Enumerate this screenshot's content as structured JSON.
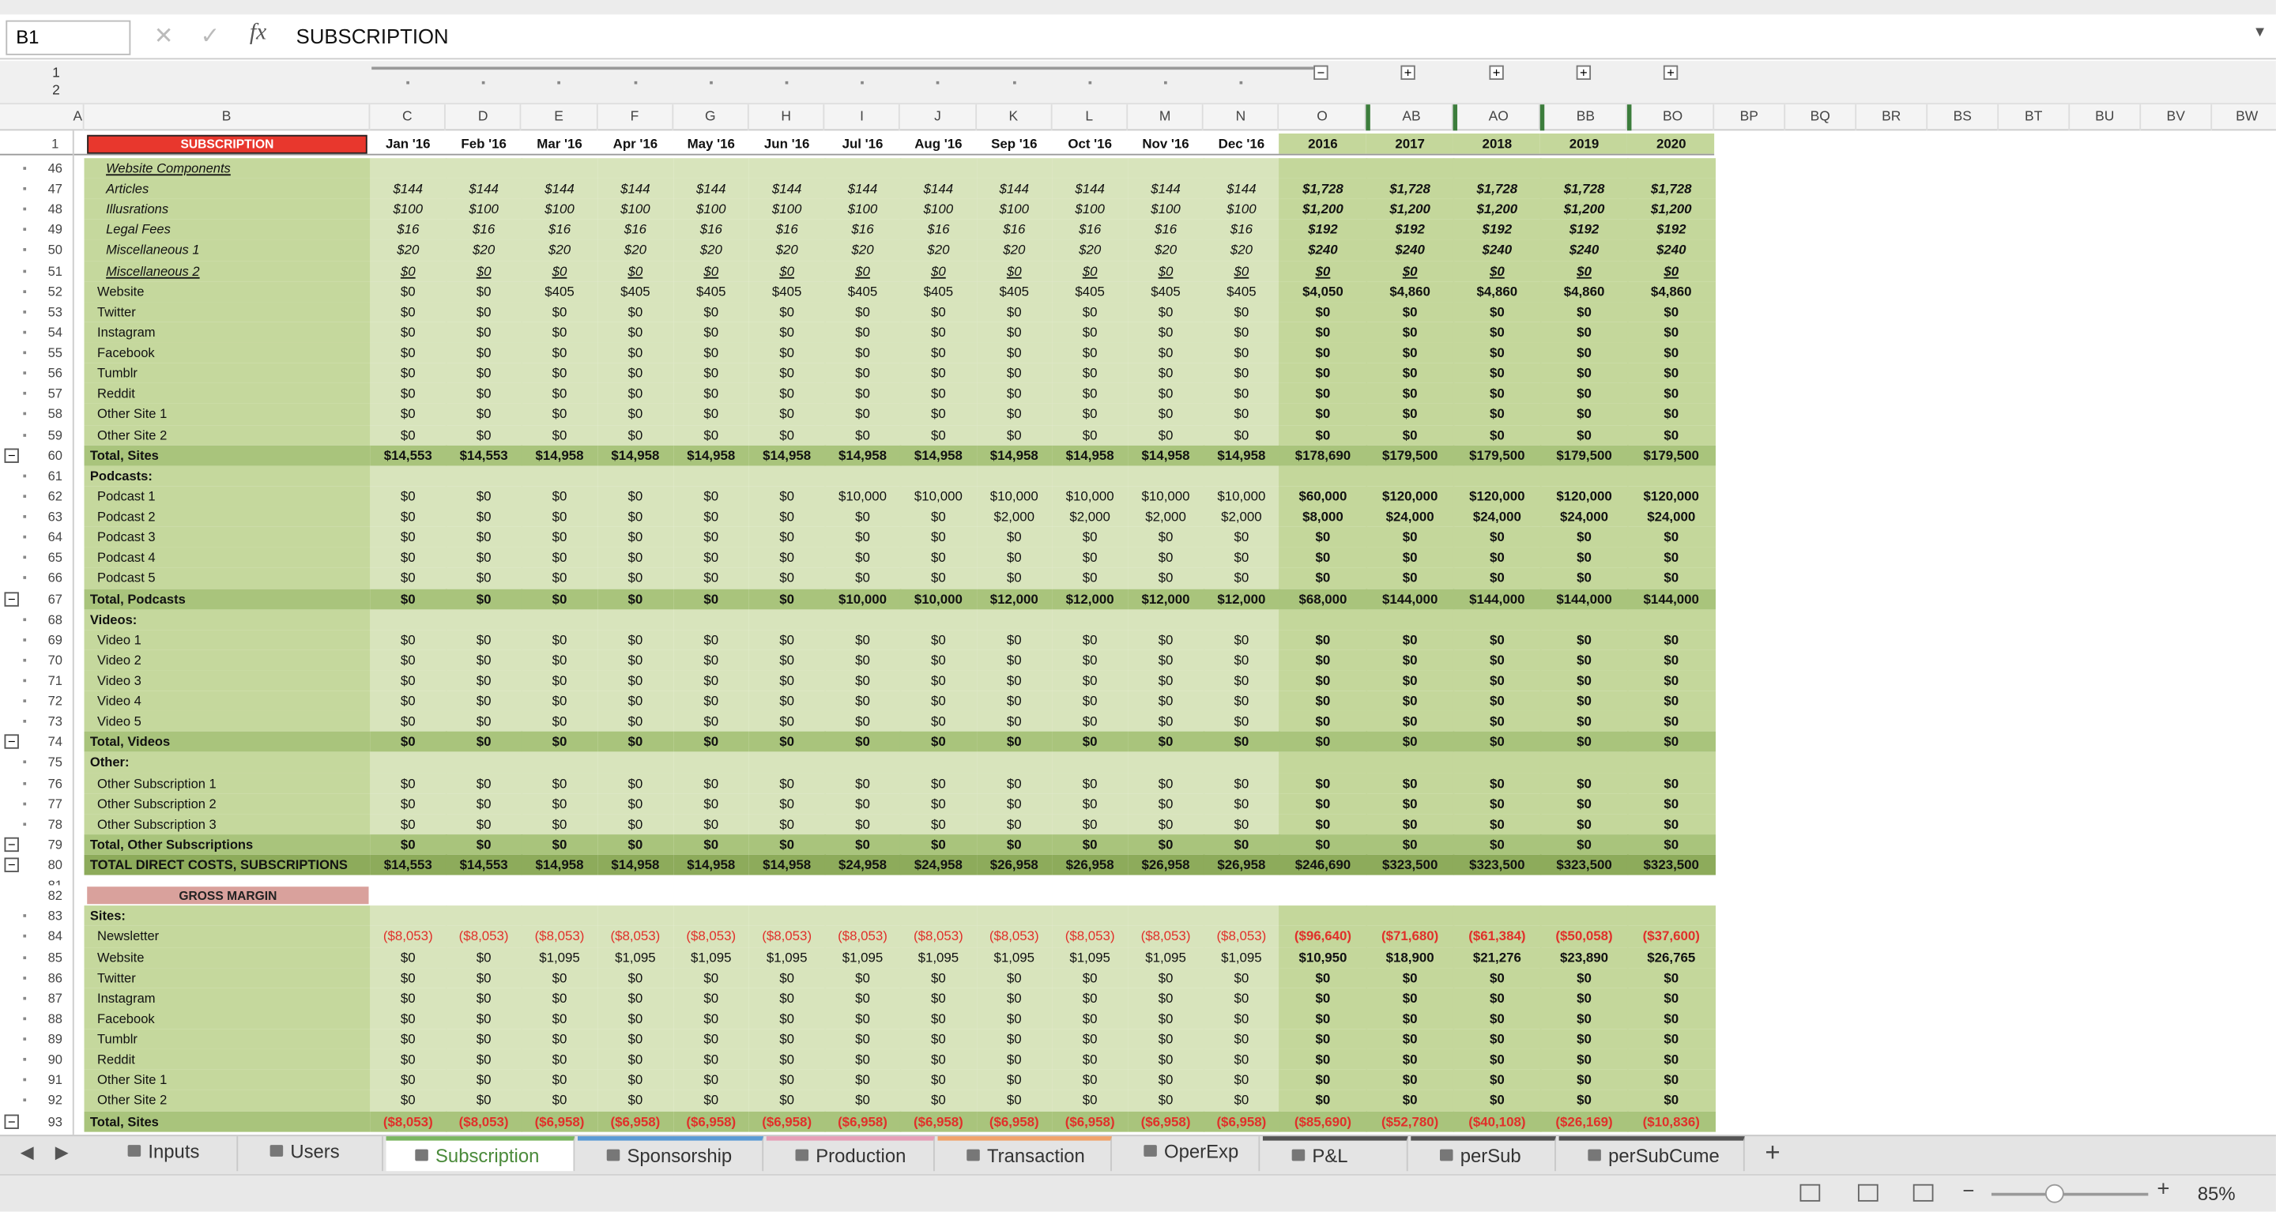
{
  "formula_bar": {
    "cell_ref": "B1",
    "content": "SUBSCRIPTION"
  },
  "outline_levels": [
    "1",
    "2"
  ],
  "column_headers": [
    "A",
    "B",
    "C",
    "D",
    "E",
    "F",
    "G",
    "H",
    "I",
    "J",
    "K",
    "L",
    "M",
    "N",
    "O",
    "AB",
    "AO",
    "BB",
    "BO",
    "BP",
    "BQ",
    "BR",
    "BS",
    "BT",
    "BU",
    "BV",
    "BW"
  ],
  "header_row": {
    "row": "1",
    "label": "SUBSCRIPTION",
    "columns": [
      "Jan '16",
      "Feb '16",
      "Mar '16",
      "Apr '16",
      "May '16",
      "Jun '16",
      "Jul '16",
      "Aug '16",
      "Sep '16",
      "Oct '16",
      "Nov '16",
      "Dec '16",
      "2016",
      "2017",
      "2018",
      "2019",
      "2020"
    ]
  },
  "rows": [
    {
      "row": "46",
      "label": "Website Components",
      "style": "sub-header"
    },
    {
      "row": "47",
      "label": "Articles",
      "style": "component",
      "values": [
        "$144",
        "$144",
        "$144",
        "$144",
        "$144",
        "$144",
        "$144",
        "$144",
        "$144",
        "$144",
        "$144",
        "$144",
        "$1,728",
        "$1,728",
        "$1,728",
        "$1,728",
        "$1,728"
      ]
    },
    {
      "row": "48",
      "label": "Illusrations",
      "style": "component",
      "values": [
        "$100",
        "$100",
        "$100",
        "$100",
        "$100",
        "$100",
        "$100",
        "$100",
        "$100",
        "$100",
        "$100",
        "$100",
        "$1,200",
        "$1,200",
        "$1,200",
        "$1,200",
        "$1,200"
      ]
    },
    {
      "row": "49",
      "label": "Legal Fees",
      "style": "component",
      "values": [
        "$16",
        "$16",
        "$16",
        "$16",
        "$16",
        "$16",
        "$16",
        "$16",
        "$16",
        "$16",
        "$16",
        "$16",
        "$192",
        "$192",
        "$192",
        "$192",
        "$192"
      ]
    },
    {
      "row": "50",
      "label": "Miscellaneous 1",
      "style": "component",
      "values": [
        "$20",
        "$20",
        "$20",
        "$20",
        "$20",
        "$20",
        "$20",
        "$20",
        "$20",
        "$20",
        "$20",
        "$20",
        "$240",
        "$240",
        "$240",
        "$240",
        "$240"
      ]
    },
    {
      "row": "51",
      "label": "Miscellaneous 2",
      "style": "component-underline",
      "values": [
        "$0",
        "$0",
        "$0",
        "$0",
        "$0",
        "$0",
        "$0",
        "$0",
        "$0",
        "$0",
        "$0",
        "$0",
        "$0",
        "$0",
        "$0",
        "$0",
        "$0"
      ]
    },
    {
      "row": "52",
      "label": "Website",
      "style": "item",
      "values": [
        "$0",
        "$0",
        "$405",
        "$405",
        "$405",
        "$405",
        "$405",
        "$405",
        "$405",
        "$405",
        "$405",
        "$405",
        "$4,050",
        "$4,860",
        "$4,860",
        "$4,860",
        "$4,860"
      ]
    },
    {
      "row": "53",
      "label": "Twitter",
      "style": "item",
      "values": [
        "$0",
        "$0",
        "$0",
        "$0",
        "$0",
        "$0",
        "$0",
        "$0",
        "$0",
        "$0",
        "$0",
        "$0",
        "$0",
        "$0",
        "$0",
        "$0",
        "$0"
      ]
    },
    {
      "row": "54",
      "label": "Instagram",
      "style": "item",
      "values": [
        "$0",
        "$0",
        "$0",
        "$0",
        "$0",
        "$0",
        "$0",
        "$0",
        "$0",
        "$0",
        "$0",
        "$0",
        "$0",
        "$0",
        "$0",
        "$0",
        "$0"
      ]
    },
    {
      "row": "55",
      "label": "Facebook",
      "style": "item",
      "values": [
        "$0",
        "$0",
        "$0",
        "$0",
        "$0",
        "$0",
        "$0",
        "$0",
        "$0",
        "$0",
        "$0",
        "$0",
        "$0",
        "$0",
        "$0",
        "$0",
        "$0"
      ]
    },
    {
      "row": "56",
      "label": "Tumblr",
      "style": "item",
      "values": [
        "$0",
        "$0",
        "$0",
        "$0",
        "$0",
        "$0",
        "$0",
        "$0",
        "$0",
        "$0",
        "$0",
        "$0",
        "$0",
        "$0",
        "$0",
        "$0",
        "$0"
      ]
    },
    {
      "row": "57",
      "label": "Reddit",
      "style": "item",
      "values": [
        "$0",
        "$0",
        "$0",
        "$0",
        "$0",
        "$0",
        "$0",
        "$0",
        "$0",
        "$0",
        "$0",
        "$0",
        "$0",
        "$0",
        "$0",
        "$0",
        "$0"
      ]
    },
    {
      "row": "58",
      "label": "Other Site 1",
      "style": "item",
      "values": [
        "$0",
        "$0",
        "$0",
        "$0",
        "$0",
        "$0",
        "$0",
        "$0",
        "$0",
        "$0",
        "$0",
        "$0",
        "$0",
        "$0",
        "$0",
        "$0",
        "$0"
      ]
    },
    {
      "row": "59",
      "label": "Other Site 2",
      "style": "item",
      "values": [
        "$0",
        "$0",
        "$0",
        "$0",
        "$0",
        "$0",
        "$0",
        "$0",
        "$0",
        "$0",
        "$0",
        "$0",
        "$0",
        "$0",
        "$0",
        "$0",
        "$0"
      ]
    },
    {
      "row": "60",
      "label": "Total, Sites",
      "style": "total",
      "values": [
        "$14,553",
        "$14,553",
        "$14,958",
        "$14,958",
        "$14,958",
        "$14,958",
        "$14,958",
        "$14,958",
        "$14,958",
        "$14,958",
        "$14,958",
        "$14,958",
        "$178,690",
        "$179,500",
        "$179,500",
        "$179,500",
        "$179,500"
      ]
    },
    {
      "row": "61",
      "label": "Podcasts:",
      "style": "group"
    },
    {
      "row": "62",
      "label": "Podcast 1",
      "style": "item",
      "values": [
        "$0",
        "$0",
        "$0",
        "$0",
        "$0",
        "$0",
        "$10,000",
        "$10,000",
        "$10,000",
        "$10,000",
        "$10,000",
        "$10,000",
        "$60,000",
        "$120,000",
        "$120,000",
        "$120,000",
        "$120,000"
      ]
    },
    {
      "row": "63",
      "label": "Podcast 2",
      "style": "item",
      "values": [
        "$0",
        "$0",
        "$0",
        "$0",
        "$0",
        "$0",
        "$0",
        "$0",
        "$2,000",
        "$2,000",
        "$2,000",
        "$2,000",
        "$8,000",
        "$24,000",
        "$24,000",
        "$24,000",
        "$24,000"
      ]
    },
    {
      "row": "64",
      "label": "Podcast 3",
      "style": "item",
      "values": [
        "$0",
        "$0",
        "$0",
        "$0",
        "$0",
        "$0",
        "$0",
        "$0",
        "$0",
        "$0",
        "$0",
        "$0",
        "$0",
        "$0",
        "$0",
        "$0",
        "$0"
      ]
    },
    {
      "row": "65",
      "label": "Podcast 4",
      "style": "item",
      "values": [
        "$0",
        "$0",
        "$0",
        "$0",
        "$0",
        "$0",
        "$0",
        "$0",
        "$0",
        "$0",
        "$0",
        "$0",
        "$0",
        "$0",
        "$0",
        "$0",
        "$0"
      ]
    },
    {
      "row": "66",
      "label": "Podcast 5",
      "style": "item",
      "values": [
        "$0",
        "$0",
        "$0",
        "$0",
        "$0",
        "$0",
        "$0",
        "$0",
        "$0",
        "$0",
        "$0",
        "$0",
        "$0",
        "$0",
        "$0",
        "$0",
        "$0"
      ]
    },
    {
      "row": "67",
      "label": "Total, Podcasts",
      "style": "total",
      "values": [
        "$0",
        "$0",
        "$0",
        "$0",
        "$0",
        "$0",
        "$10,000",
        "$10,000",
        "$12,000",
        "$12,000",
        "$12,000",
        "$12,000",
        "$68,000",
        "$144,000",
        "$144,000",
        "$144,000",
        "$144,000"
      ]
    },
    {
      "row": "68",
      "label": "Videos:",
      "style": "group"
    },
    {
      "row": "69",
      "label": "Video 1",
      "style": "item",
      "values": [
        "$0",
        "$0",
        "$0",
        "$0",
        "$0",
        "$0",
        "$0",
        "$0",
        "$0",
        "$0",
        "$0",
        "$0",
        "$0",
        "$0",
        "$0",
        "$0",
        "$0"
      ]
    },
    {
      "row": "70",
      "label": "Video 2",
      "style": "item",
      "values": [
        "$0",
        "$0",
        "$0",
        "$0",
        "$0",
        "$0",
        "$0",
        "$0",
        "$0",
        "$0",
        "$0",
        "$0",
        "$0",
        "$0",
        "$0",
        "$0",
        "$0"
      ]
    },
    {
      "row": "71",
      "label": "Video 3",
      "style": "item",
      "values": [
        "$0",
        "$0",
        "$0",
        "$0",
        "$0",
        "$0",
        "$0",
        "$0",
        "$0",
        "$0",
        "$0",
        "$0",
        "$0",
        "$0",
        "$0",
        "$0",
        "$0"
      ]
    },
    {
      "row": "72",
      "label": "Video 4",
      "style": "item",
      "values": [
        "$0",
        "$0",
        "$0",
        "$0",
        "$0",
        "$0",
        "$0",
        "$0",
        "$0",
        "$0",
        "$0",
        "$0",
        "$0",
        "$0",
        "$0",
        "$0",
        "$0"
      ]
    },
    {
      "row": "73",
      "label": "Video 5",
      "style": "item",
      "values": [
        "$0",
        "$0",
        "$0",
        "$0",
        "$0",
        "$0",
        "$0",
        "$0",
        "$0",
        "$0",
        "$0",
        "$0",
        "$0",
        "$0",
        "$0",
        "$0",
        "$0"
      ]
    },
    {
      "row": "74",
      "label": "Total, Videos",
      "style": "total",
      "values": [
        "$0",
        "$0",
        "$0",
        "$0",
        "$0",
        "$0",
        "$0",
        "$0",
        "$0",
        "$0",
        "$0",
        "$0",
        "$0",
        "$0",
        "$0",
        "$0",
        "$0"
      ]
    },
    {
      "row": "75",
      "label": "Other:",
      "style": "group"
    },
    {
      "row": "76",
      "label": "Other Subscription 1",
      "style": "item",
      "values": [
        "$0",
        "$0",
        "$0",
        "$0",
        "$0",
        "$0",
        "$0",
        "$0",
        "$0",
        "$0",
        "$0",
        "$0",
        "$0",
        "$0",
        "$0",
        "$0",
        "$0"
      ]
    },
    {
      "row": "77",
      "label": "Other Subscription 2",
      "style": "item",
      "values": [
        "$0",
        "$0",
        "$0",
        "$0",
        "$0",
        "$0",
        "$0",
        "$0",
        "$0",
        "$0",
        "$0",
        "$0",
        "$0",
        "$0",
        "$0",
        "$0",
        "$0"
      ]
    },
    {
      "row": "78",
      "label": "Other Subscription 3",
      "style": "item",
      "values": [
        "$0",
        "$0",
        "$0",
        "$0",
        "$0",
        "$0",
        "$0",
        "$0",
        "$0",
        "$0",
        "$0",
        "$0",
        "$0",
        "$0",
        "$0",
        "$0",
        "$0"
      ]
    },
    {
      "row": "79",
      "label": "Total, Other Subscriptions",
      "style": "total",
      "values": [
        "$0",
        "$0",
        "$0",
        "$0",
        "$0",
        "$0",
        "$0",
        "$0",
        "$0",
        "$0",
        "$0",
        "$0",
        "$0",
        "$0",
        "$0",
        "$0",
        "$0"
      ]
    },
    {
      "row": "80",
      "label": "TOTAL DIRECT COSTS, SUBSCRIPTIONS",
      "style": "grand-total",
      "values": [
        "$14,553",
        "$14,553",
        "$14,958",
        "$14,958",
        "$14,958",
        "$14,958",
        "$24,958",
        "$24,958",
        "$26,958",
        "$26,958",
        "$26,958",
        "$26,958",
        "$246,690",
        "$323,500",
        "$323,500",
        "$323,500",
        "$323,500"
      ]
    },
    {
      "row": "81",
      "style": "spacer"
    },
    {
      "row": "82",
      "label": "GROSS MARGIN",
      "style": "section"
    },
    {
      "row": "83",
      "label": "Sites:",
      "style": "group"
    },
    {
      "row": "84",
      "label": "Newsletter",
      "style": "item",
      "values": [
        "($8,053)",
        "($8,053)",
        "($8,053)",
        "($8,053)",
        "($8,053)",
        "($8,053)",
        "($8,053)",
        "($8,053)",
        "($8,053)",
        "($8,053)",
        "($8,053)",
        "($8,053)",
        "($96,640)",
        "($71,680)",
        "($61,384)",
        "($50,058)",
        "($37,600)"
      ]
    },
    {
      "row": "85",
      "label": "Website",
      "style": "item",
      "values": [
        "$0",
        "$0",
        "$1,095",
        "$1,095",
        "$1,095",
        "$1,095",
        "$1,095",
        "$1,095",
        "$1,095",
        "$1,095",
        "$1,095",
        "$1,095",
        "$10,950",
        "$18,900",
        "$21,276",
        "$23,890",
        "$26,765"
      ]
    },
    {
      "row": "86",
      "label": "Twitter",
      "style": "item",
      "values": [
        "$0",
        "$0",
        "$0",
        "$0",
        "$0",
        "$0",
        "$0",
        "$0",
        "$0",
        "$0",
        "$0",
        "$0",
        "$0",
        "$0",
        "$0",
        "$0",
        "$0"
      ]
    },
    {
      "row": "87",
      "label": "Instagram",
      "style": "item",
      "values": [
        "$0",
        "$0",
        "$0",
        "$0",
        "$0",
        "$0",
        "$0",
        "$0",
        "$0",
        "$0",
        "$0",
        "$0",
        "$0",
        "$0",
        "$0",
        "$0",
        "$0"
      ]
    },
    {
      "row": "88",
      "label": "Facebook",
      "style": "item",
      "values": [
        "$0",
        "$0",
        "$0",
        "$0",
        "$0",
        "$0",
        "$0",
        "$0",
        "$0",
        "$0",
        "$0",
        "$0",
        "$0",
        "$0",
        "$0",
        "$0",
        "$0"
      ]
    },
    {
      "row": "89",
      "label": "Tumblr",
      "style": "item",
      "values": [
        "$0",
        "$0",
        "$0",
        "$0",
        "$0",
        "$0",
        "$0",
        "$0",
        "$0",
        "$0",
        "$0",
        "$0",
        "$0",
        "$0",
        "$0",
        "$0",
        "$0"
      ]
    },
    {
      "row": "90",
      "label": "Reddit",
      "style": "item",
      "values": [
        "$0",
        "$0",
        "$0",
        "$0",
        "$0",
        "$0",
        "$0",
        "$0",
        "$0",
        "$0",
        "$0",
        "$0",
        "$0",
        "$0",
        "$0",
        "$0",
        "$0"
      ]
    },
    {
      "row": "91",
      "label": "Other Site 1",
      "style": "item",
      "values": [
        "$0",
        "$0",
        "$0",
        "$0",
        "$0",
        "$0",
        "$0",
        "$0",
        "$0",
        "$0",
        "$0",
        "$0",
        "$0",
        "$0",
        "$0",
        "$0",
        "$0"
      ]
    },
    {
      "row": "92",
      "label": "Other Site 2",
      "style": "item",
      "values": [
        "$0",
        "$0",
        "$0",
        "$0",
        "$0",
        "$0",
        "$0",
        "$0",
        "$0",
        "$0",
        "$0",
        "$0",
        "$0",
        "$0",
        "$0",
        "$0",
        "$0"
      ]
    },
    {
      "row": "93",
      "label": "Total, Sites",
      "style": "total",
      "values": [
        "($8,053)",
        "($8,053)",
        "($6,958)",
        "($6,958)",
        "($6,958)",
        "($6,958)",
        "($6,958)",
        "($6,958)",
        "($6,958)",
        "($6,958)",
        "($6,958)",
        "($6,958)",
        "($85,690)",
        "($52,780)",
        "($40,108)",
        "($26,169)",
        "($10,836)"
      ]
    }
  ],
  "sheet_tabs": [
    "Inputs",
    "Users",
    "Subscription",
    "Sponsorship",
    "Production",
    "Transaction",
    "OperExp",
    "P&L",
    "perSub",
    "perSubCume"
  ],
  "active_tab": "Subscription",
  "zoom": "85%"
}
